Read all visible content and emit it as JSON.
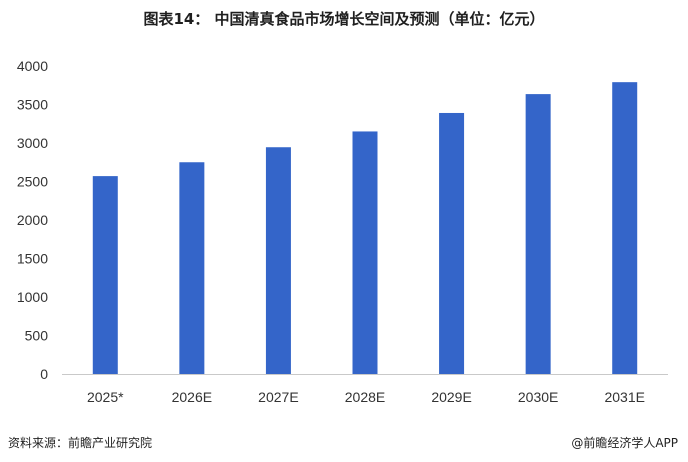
{
  "title": "图表14：  中国清真食品市场增长空间及预测（单位：亿元）",
  "source": "资料来源：前瞻产业研究院",
  "brand": "@前瞻经济学人APP",
  "colors": {
    "bar": "#3465c9",
    "axis": "#c9c9c9"
  },
  "chart_data": {
    "type": "bar",
    "categories": [
      "2025*",
      "2026E",
      "2027E",
      "2028E",
      "2029E",
      "2030E",
      "2031E"
    ],
    "values": [
      2570,
      2750,
      2945,
      3150,
      3390,
      3635,
      3790
    ],
    "ylim": [
      0,
      4000
    ],
    "yticks": [
      0,
      500,
      1000,
      1500,
      2000,
      2500,
      3000,
      3500,
      4000
    ],
    "title": "图表14：  中国清真食品市场增长空间及预测（单位：亿元）",
    "xlabel": "",
    "ylabel": "",
    "grid": false,
    "legend": "none"
  }
}
